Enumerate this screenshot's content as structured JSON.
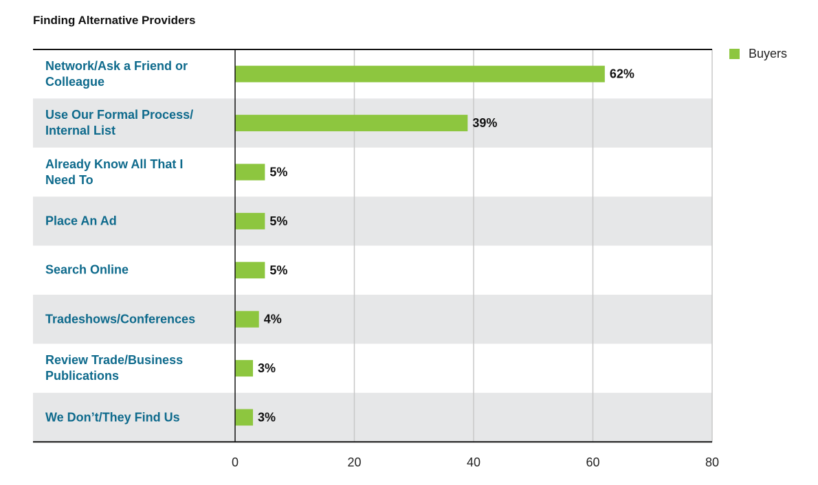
{
  "chart_data": {
    "type": "bar",
    "orientation": "horizontal",
    "title": "Finding Alternative Providers",
    "xlabel": "",
    "ylabel": "",
    "categories": [
      "Network/Ask a Friend or\nColleague",
      "Use Our Formal Process/\nInternal List",
      "Already Know All That I\nNeed To",
      "Place An Ad",
      "Search Online",
      "Tradeshows/Conferences",
      "Review Trade/Business\nPublications",
      "We Don’t/They Find Us"
    ],
    "series": [
      {
        "name": "Buyers",
        "values": [
          62,
          39,
          5,
          5,
          5,
          4,
          3,
          3
        ],
        "labels": [
          "62%",
          "39%",
          "5%",
          "5%",
          "5%",
          "4%",
          "3%",
          "3%"
        ],
        "color": "#8dc63f"
      }
    ],
    "xlim": [
      0,
      80
    ],
    "xticks": [
      "0",
      "20",
      "40",
      "60",
      "80"
    ],
    "grid": true,
    "legend": "top-right",
    "colors": {
      "bar": "#8dc63f",
      "band": "#e6e7e8",
      "category_text": "#0e6a8c",
      "gridline": "#c8c8c8",
      "axis": "#111111"
    }
  }
}
